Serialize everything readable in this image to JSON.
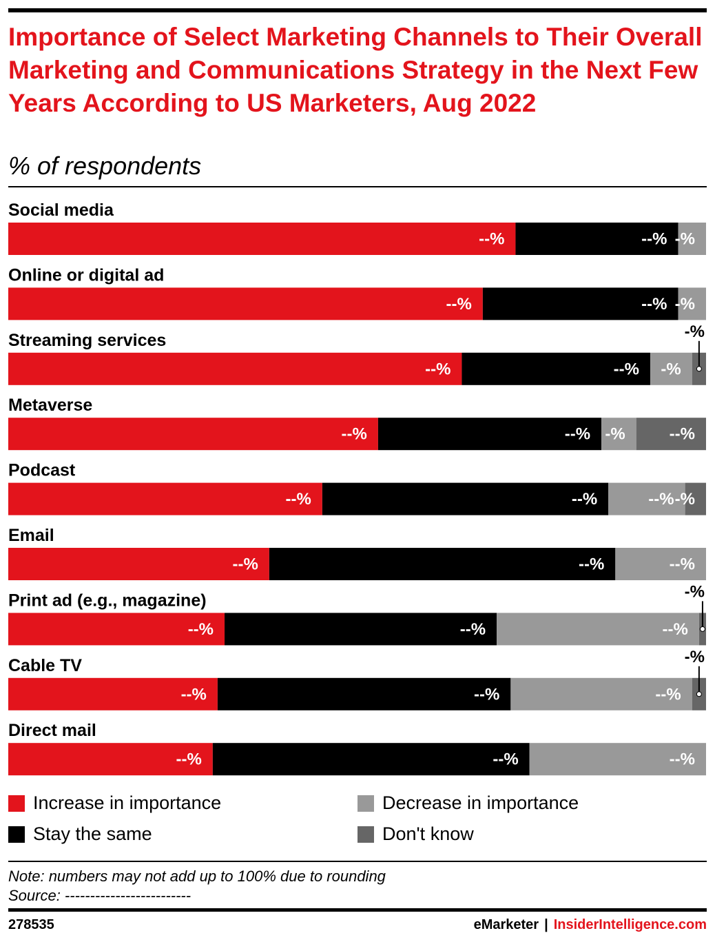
{
  "header": {
    "title": "Importance of Select Marketing Channels to Their Overall Marketing and Communications Strategy in the Next Few Years According to US Marketers, Aug 2022",
    "subtitle": "% of respondents"
  },
  "colors": {
    "increase": "#e3141c",
    "same": "#000000",
    "decrease": "#999999",
    "dont_know": "#666666"
  },
  "chart_data": {
    "type": "bar",
    "orientation": "horizontal-stacked-100",
    "categories": [
      "Social media",
      "Online or digital ad",
      "Streaming services",
      "Metaverse",
      "Podcast",
      "Email",
      "Print ad (e.g., magazine)",
      "Cable TV",
      "Direct mail"
    ],
    "series": [
      {
        "name": "Increase in importance",
        "values": [
          72.7,
          68.0,
          65.0,
          53.0,
          45.0,
          37.4,
          31.0,
          30.0,
          29.3
        ],
        "labels": [
          "--%",
          "--%",
          "--%",
          "--%",
          "--%",
          "--%",
          "--%",
          "--%",
          "--%"
        ]
      },
      {
        "name": "Stay the same",
        "values": [
          23.3,
          28.0,
          27.0,
          32.0,
          41.0,
          49.6,
          39.0,
          42.0,
          45.4
        ],
        "labels": [
          "--%",
          "--%",
          "--%",
          "--%",
          "--%",
          "--%",
          "--%",
          "--%",
          "--%"
        ]
      },
      {
        "name": "Decrease in importance",
        "values": [
          4.0,
          4.0,
          6.0,
          5.0,
          11.0,
          13.0,
          29.0,
          26.0,
          25.3
        ],
        "labels": [
          "-%",
          "-%",
          "-%",
          "-%",
          "--%",
          "--%",
          "--%",
          "--%",
          "--%"
        ]
      },
      {
        "name": "Don't know",
        "values": [
          0,
          0,
          2.0,
          10.0,
          3.0,
          0,
          1.0,
          2.0,
          0
        ],
        "labels": [
          "",
          "",
          "-%",
          "--%",
          "-%",
          "",
          "-%",
          "-%",
          ""
        ]
      }
    ],
    "xlim": [
      0,
      100
    ],
    "legend": "bottom"
  },
  "legend": {
    "items": [
      {
        "label": "Increase in importance"
      },
      {
        "label": "Stay the same"
      },
      {
        "label": "Decrease in importance"
      },
      {
        "label": "Don't know"
      }
    ]
  },
  "footer": {
    "note": "Note: numbers may not add up to 100% due to rounding",
    "source": "Source: -------------------------",
    "chart_id": "278535",
    "brand_emarketer": "eMarketer",
    "brand_separator": "|",
    "brand_insider": "InsiderIntelligence.com"
  }
}
